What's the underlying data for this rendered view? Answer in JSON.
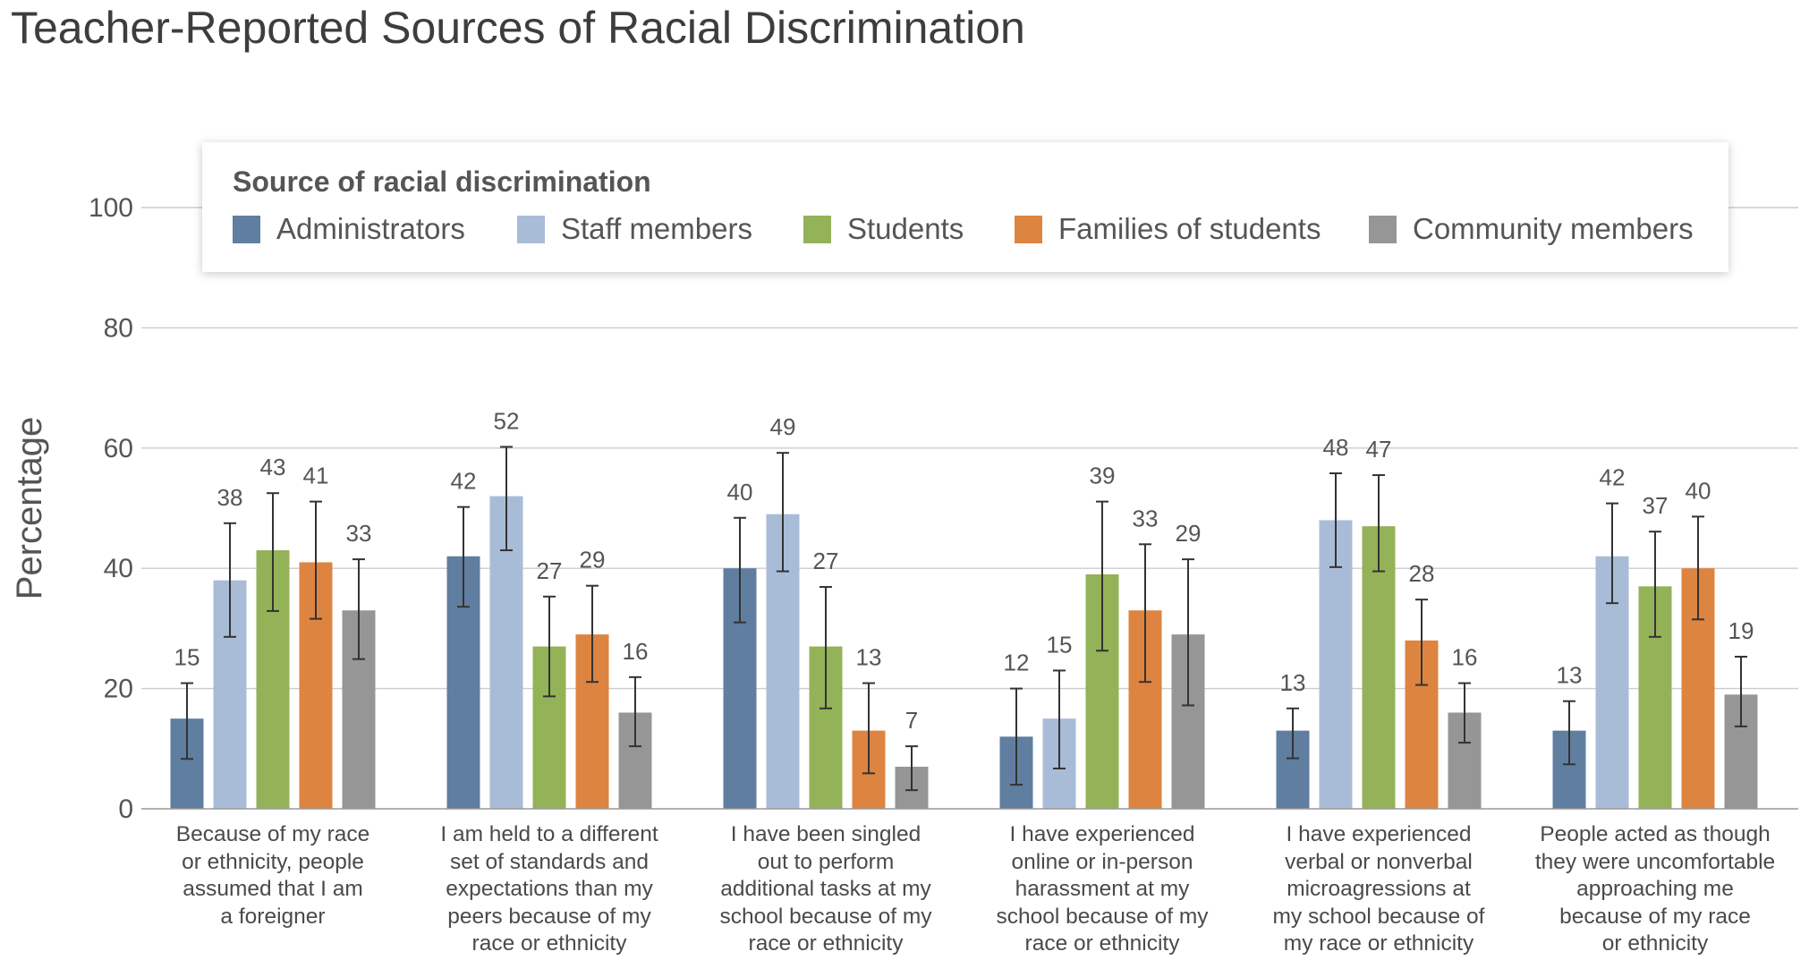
{
  "chart_data": {
    "type": "bar",
    "title": "Teacher-Reported Sources of Racial Discrimination",
    "ylabel": "Percentage",
    "xlabel": "",
    "ylim": [
      0,
      100
    ],
    "yticks": [
      0,
      20,
      40,
      60,
      80,
      100
    ],
    "grid": true,
    "error_bars": true,
    "legend": {
      "title": "Source of racial discrimination",
      "placement": "top"
    },
    "categories": [
      "Because of my race or ethnicity, people assumed that I am a foreigner",
      "I am held to a different set of standards and expectations than my peers because of my race or ethnicity",
      "I have been singled out to perform additional tasks at my school because of my race or ethnicity",
      "I have experienced online or in-person harassment at my school because of my race or ethnicity",
      "I have experienced verbal or nonverbal microagressions at my school because of my race or ethnicity",
      "People acted as though they were uncomfortable approaching me because of my race or ethnicity"
    ],
    "series": [
      {
        "name": "Administrators",
        "color": "#607ea0",
        "values": [
          15,
          42,
          40,
          12,
          13,
          13
        ],
        "error_low": [
          8.3,
          33.6,
          31.0,
          4.0,
          8.4,
          7.4
        ],
        "error_high": [
          20.9,
          50.2,
          48.4,
          20.0,
          16.7,
          17.9
        ]
      },
      {
        "name": "Staff members",
        "color": "#a9bcd7",
        "values": [
          38,
          52,
          49,
          15,
          48,
          42
        ],
        "error_low": [
          28.6,
          43.0,
          39.5,
          6.7,
          40.2,
          34.2
        ],
        "error_high": [
          47.5,
          60.2,
          59.2,
          23.0,
          55.8,
          50.8
        ]
      },
      {
        "name": "Students",
        "color": "#94b257",
        "values": [
          43,
          27,
          27,
          39,
          47,
          37
        ],
        "error_low": [
          32.9,
          18.7,
          16.7,
          26.3,
          39.5,
          28.6
        ],
        "error_high": [
          52.5,
          35.3,
          36.9,
          51.1,
          55.5,
          46.1
        ]
      },
      {
        "name": "Families of students",
        "color": "#dd8441",
        "values": [
          41,
          29,
          13,
          33,
          28,
          40
        ],
        "error_low": [
          31.6,
          21.1,
          5.9,
          21.1,
          20.6,
          31.5
        ],
        "error_high": [
          51.1,
          37.1,
          20.9,
          44.0,
          34.8,
          48.6
        ]
      },
      {
        "name": "Community members",
        "color": "#969696",
        "values": [
          33,
          16,
          7,
          29,
          16,
          19
        ],
        "error_low": [
          24.9,
          10.4,
          3.1,
          17.2,
          11.0,
          13.7
        ],
        "error_high": [
          41.5,
          21.9,
          10.4,
          41.5,
          20.9,
          25.3
        ]
      }
    ]
  },
  "category_label_lines": [
    [
      "Because of my race",
      "or ethnicity, people",
      "assumed that I am",
      "a foreigner"
    ],
    [
      "I am held to a different",
      "set of standards and",
      "expectations than my",
      "peers because of my",
      "race or ethnicity"
    ],
    [
      "I have been singled",
      "out to perform",
      "additional tasks at my",
      "school because of my",
      "race or ethnicity"
    ],
    [
      "I have experienced",
      "online or in-person",
      "harassment at my",
      "school because of my",
      "race or ethnicity"
    ],
    [
      "I have experienced",
      "verbal or nonverbal",
      "microagressions at",
      "my school because of",
      "my race or ethnicity"
    ],
    [
      "People acted as though",
      "they were uncomfortable",
      "approaching me",
      "because of my race",
      "or ethnicity"
    ]
  ]
}
